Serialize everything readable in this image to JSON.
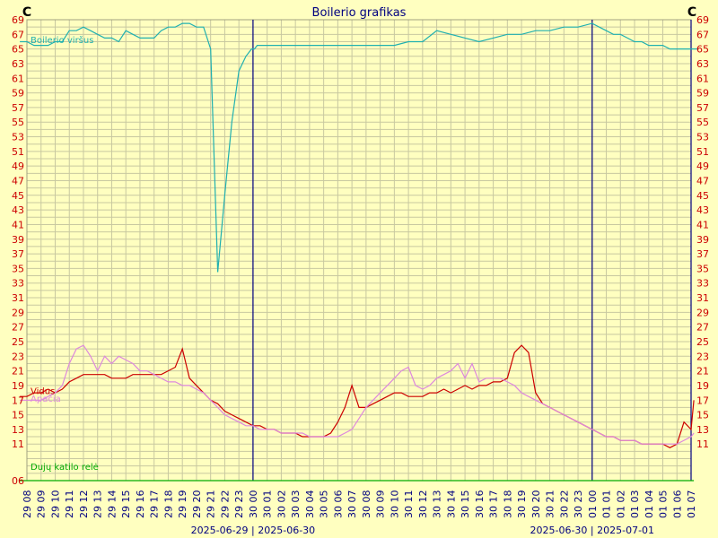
{
  "chart_data": {
    "type": "line",
    "title": "Boilerio grafikas",
    "y_unit_left": "C",
    "y_unit_right": "C",
    "ylim": [
      6,
      69
    ],
    "y_ticks_top": [
      69,
      67,
      65,
      63,
      61,
      59,
      57,
      55,
      53,
      51,
      49,
      47,
      45,
      43,
      41,
      39,
      37,
      35,
      33,
      31,
      29,
      27,
      25,
      23,
      21,
      19,
      17,
      15,
      13,
      11
    ],
    "y_bottom_label": "06",
    "grid": true,
    "x_tick_labels": [
      "29 08",
      "29 09",
      "29 10",
      "29 11",
      "29 12",
      "29 13",
      "29 14",
      "29 15",
      "29 16",
      "29 17",
      "29 18",
      "29 19",
      "29 20",
      "29 21",
      "29 22",
      "29 23",
      "30 00",
      "30 01",
      "30 02",
      "30 03",
      "30 04",
      "30 05",
      "30 06",
      "30 07",
      "30 08",
      "30 09",
      "30 10",
      "30 11",
      "30 12",
      "30 13",
      "30 14",
      "30 15",
      "30 16",
      "30 17",
      "30 18",
      "30 19",
      "30 20",
      "30 21",
      "30 22",
      "30 23",
      "01 00",
      "01 01",
      "01 02",
      "01 03",
      "01 04",
      "01 05",
      "01 06",
      "01 07"
    ],
    "day_boundaries": [
      {
        "at": "30 00",
        "label": "2025-06-29 | 2025-06-30"
      },
      {
        "at": "01 00",
        "label": "2025-06-30 | 2025-07-01"
      }
    ],
    "series": [
      {
        "name": "Boilerio viršus",
        "color": "#20b0b0",
        "x": [
          7.5,
          8,
          8.5,
          9,
          9.5,
          10,
          10.5,
          11,
          11.5,
          12,
          12.5,
          13,
          13.5,
          14,
          14.5,
          15,
          15.5,
          16,
          16.5,
          17,
          17.5,
          18,
          18.5,
          19,
          19.5,
          20,
          20.5,
          21,
          21.5,
          22,
          22.5,
          23,
          23.5,
          23.9,
          24.1,
          24.3,
          24.6,
          25,
          25.4,
          25.8,
          26.2,
          26.6,
          27,
          27.5,
          28,
          29,
          30,
          31,
          32,
          33,
          34,
          35,
          36,
          37,
          38,
          39,
          40,
          41,
          42,
          43,
          44,
          45,
          46,
          47,
          48,
          48.5,
          49,
          49.5,
          50,
          50.5,
          51,
          51.5,
          52,
          52.5,
          53,
          53.5,
          54,
          54.5,
          55,
          55.5
        ],
        "values": [
          66,
          66,
          65.5,
          65.5,
          65.5,
          66,
          66,
          67.5,
          67.5,
          68,
          67.5,
          67,
          66.5,
          66.5,
          66,
          67.5,
          67,
          66.5,
          66.5,
          66.5,
          67.5,
          68,
          68,
          68.5,
          68.5,
          68,
          68,
          65,
          34.5,
          45,
          55,
          62,
          64,
          65,
          65,
          65.5,
          65.5,
          65.5,
          65.5,
          65.5,
          65.5,
          65.5,
          65.5,
          65.5,
          65.5,
          65.5,
          65.5,
          65.5,
          65.5,
          65.5,
          65.5,
          66,
          66,
          67.5,
          67,
          66.5,
          66,
          66.5,
          67,
          67,
          67.5,
          67.5,
          68,
          68,
          68.5,
          68,
          67.5,
          67,
          67,
          66.5,
          66,
          66,
          65.5,
          65.5,
          65.5,
          65,
          65,
          65,
          65,
          65
        ]
      },
      {
        "name": "Vidus",
        "color": "#cc0000",
        "x": [
          7.5,
          8,
          8.5,
          9,
          9.5,
          10,
          10.5,
          11,
          11.5,
          12,
          12.5,
          13,
          13.5,
          14,
          14.5,
          15,
          15.5,
          16,
          16.5,
          17,
          17.5,
          18,
          18.5,
          19,
          19.5,
          20,
          20.5,
          21,
          21.5,
          22,
          22.5,
          23,
          23.5,
          24,
          24.5,
          25,
          25.5,
          26,
          26.5,
          27,
          27.5,
          28,
          28.5,
          29,
          29.5,
          30,
          30.5,
          31,
          31.5,
          32,
          32.5,
          33,
          33.5,
          34,
          34.5,
          35,
          35.5,
          36,
          36.5,
          37,
          37.5,
          38,
          38.5,
          39,
          39.5,
          40,
          40.5,
          41,
          41.5,
          42,
          42.5,
          43,
          43.5,
          44,
          44.5,
          45,
          45.5,
          46,
          46.5,
          47,
          47.5,
          48,
          48.5,
          49,
          49.5,
          50,
          50.5,
          51,
          51.5,
          52,
          52.5,
          53,
          53.5,
          54,
          54.5,
          55,
          55.2
        ],
        "values": [
          17.5,
          17.5,
          18,
          18,
          18.5,
          18,
          18.5,
          19.5,
          20,
          20.5,
          20.5,
          20.5,
          20.5,
          20,
          20,
          20,
          20.5,
          20.5,
          20.5,
          20.5,
          20.5,
          21,
          21.5,
          24,
          20,
          19,
          18,
          17,
          16.5,
          15.5,
          15,
          14.5,
          14,
          13.5,
          13.5,
          13,
          13,
          12.5,
          12.5,
          12.5,
          12,
          12,
          12,
          12,
          12.5,
          14,
          16,
          19,
          16,
          16,
          16.5,
          17,
          17.5,
          18,
          18,
          17.5,
          17.5,
          17.5,
          18,
          18,
          18.5,
          18,
          18.5,
          19,
          18.5,
          19,
          19,
          19.5,
          19.5,
          20,
          23.5,
          24.5,
          23.5,
          18,
          16.5,
          16,
          15.5,
          15,
          14.5,
          14,
          13.5,
          13,
          12.5,
          12,
          12,
          11.5,
          11.5,
          11.5,
          11,
          11,
          11,
          11,
          10.5,
          11,
          14,
          13,
          17
        ]
      },
      {
        "name": "Apačia",
        "color": "#dd88dd",
        "x": [
          7.5,
          8,
          8.5,
          9,
          9.5,
          10,
          10.5,
          11,
          11.5,
          12,
          12.5,
          13,
          13.5,
          14,
          14.5,
          15,
          15.5,
          16,
          16.5,
          17,
          17.5,
          18,
          18.5,
          19,
          19.5,
          20,
          20.5,
          21,
          21.5,
          22,
          22.5,
          23,
          23.5,
          24,
          24.5,
          25,
          25.5,
          26,
          26.5,
          27,
          27.5,
          28,
          28.5,
          29,
          29.5,
          30,
          30.5,
          31,
          31.5,
          32,
          32.5,
          33,
          33.5,
          34,
          34.5,
          35,
          35.5,
          36,
          36.5,
          37,
          37.5,
          38,
          38.5,
          39,
          39.5,
          40,
          40.5,
          41,
          41.5,
          42,
          42.5,
          43,
          43.5,
          44,
          44.5,
          45,
          45.5,
          46,
          46.5,
          47,
          47.5,
          48,
          48.5,
          49,
          49.5,
          50,
          50.5,
          51,
          51.5,
          52,
          52.5,
          53,
          53.5,
          54,
          54.5,
          55,
          55.2
        ],
        "values": [
          17,
          17,
          17,
          17,
          17.5,
          18,
          19,
          22,
          24,
          24.5,
          23,
          21,
          23,
          22,
          23,
          22.5,
          22,
          21,
          21,
          20.5,
          20,
          19.5,
          19.5,
          19,
          19,
          18.5,
          18,
          17,
          16,
          15,
          14.5,
          14,
          13.5,
          13.5,
          13,
          13,
          13,
          12.5,
          12.5,
          12.5,
          12.5,
          12,
          12,
          12,
          12,
          12,
          12.5,
          13,
          14.5,
          16,
          17,
          18,
          19,
          20,
          21,
          21.5,
          19,
          18.5,
          19,
          20,
          20.5,
          21,
          22,
          20,
          22,
          19.5,
          20,
          20,
          20,
          19.5,
          19,
          18,
          17.5,
          17,
          16.5,
          16,
          15.5,
          15,
          14.5,
          14,
          13.5,
          13,
          12.5,
          12,
          12,
          11.5,
          11.5,
          11.5,
          11,
          11,
          11,
          11,
          11,
          11,
          11.5,
          12,
          12.5
        ]
      },
      {
        "name": "Dujų katilo relė",
        "color": "#00aa00",
        "x": [
          7.5,
          55.2
        ],
        "values": [
          6,
          6
        ]
      }
    ]
  }
}
